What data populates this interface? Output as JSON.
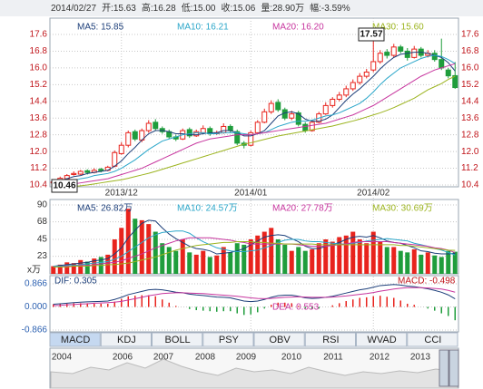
{
  "header": {
    "items": [
      "2014/02/27",
      "开:15.63",
      "高:16.28",
      "低:15.00",
      "收:15.06",
      "量:28.90万",
      "幅:-3.59%"
    ]
  },
  "chart_data": [
    {
      "type": "candlestick",
      "categories": [
        null,
        null,
        null,
        null,
        null,
        null,
        null,
        null,
        null,
        null,
        "2013/12",
        null,
        null,
        null,
        null,
        null,
        null,
        null,
        null,
        null,
        null,
        null,
        null,
        null,
        null,
        null,
        null,
        null,
        null,
        "2014/01",
        null,
        null,
        null,
        null,
        null,
        null,
        null,
        null,
        null,
        null,
        null,
        null,
        null,
        null,
        null,
        null,
        null,
        "2014/02",
        null,
        null,
        null,
        null,
        null,
        null,
        null,
        null,
        null,
        null,
        null,
        null
      ],
      "open": [
        10.5,
        10.56,
        10.7,
        10.9,
        10.92,
        11.08,
        11.0,
        11.15,
        11.1,
        11.3,
        11.9,
        12.3,
        12.95,
        12.55,
        13.0,
        13.4,
        13.1,
        12.95,
        12.7,
        12.6,
        13.05,
        12.75,
        12.9,
        13.1,
        12.85,
        12.9,
        13.2,
        12.95,
        12.4,
        12.3,
        12.9,
        13.4,
        13.9,
        14.35,
        14.0,
        13.6,
        13.85,
        13.3,
        13.0,
        13.4,
        13.8,
        14.2,
        14.5,
        14.7,
        15.0,
        15.3,
        15.6,
        15.9,
        16.3,
        16.75,
        16.6,
        17.0,
        16.8,
        16.5,
        16.9,
        16.6,
        16.7,
        16.4,
        15.9,
        15.63
      ],
      "high": [
        10.62,
        10.8,
        10.92,
        11.05,
        11.12,
        11.15,
        11.2,
        11.22,
        11.32,
        12.05,
        12.45,
        13.0,
        13.05,
        13.1,
        13.5,
        13.55,
        13.2,
        13.05,
        12.8,
        13.1,
        13.15,
        13.05,
        13.25,
        13.2,
        13.0,
        13.35,
        13.3,
        13.05,
        12.5,
        13.0,
        13.5,
        14.05,
        14.45,
        14.5,
        14.1,
        13.95,
        13.95,
        13.4,
        13.5,
        13.9,
        14.35,
        14.6,
        14.85,
        15.15,
        15.45,
        15.75,
        15.95,
        17.57,
        16.85,
        16.9,
        17.15,
        17.1,
        16.95,
        17.05,
        17.0,
        16.85,
        16.85,
        17.4,
        16.0,
        16.28
      ],
      "low": [
        10.46,
        10.5,
        10.65,
        10.85,
        10.88,
        10.9,
        10.95,
        11.0,
        11.05,
        11.25,
        11.85,
        12.2,
        12.5,
        12.45,
        12.9,
        13.0,
        12.85,
        12.6,
        12.5,
        12.55,
        12.65,
        12.7,
        12.85,
        12.75,
        12.8,
        12.85,
        12.9,
        12.3,
        12.15,
        12.25,
        12.85,
        13.35,
        13.8,
        13.9,
        13.5,
        13.5,
        13.2,
        12.9,
        12.95,
        13.35,
        13.75,
        14.1,
        14.4,
        14.6,
        14.9,
        15.2,
        15.5,
        15.8,
        16.2,
        16.45,
        16.5,
        16.7,
        16.35,
        16.45,
        16.5,
        16.5,
        16.3,
        15.9,
        15.5,
        15.0
      ],
      "close": [
        10.55,
        10.72,
        10.85,
        10.95,
        11.05,
        11.0,
        11.1,
        11.08,
        11.25,
        11.95,
        12.3,
        12.9,
        12.6,
        13.0,
        13.35,
        13.1,
        12.95,
        12.7,
        12.6,
        13.0,
        12.75,
        12.95,
        13.1,
        12.85,
        12.9,
        13.2,
        13.0,
        12.4,
        12.3,
        12.9,
        13.4,
        13.9,
        14.3,
        14.0,
        13.6,
        13.8,
        13.3,
        13.0,
        13.4,
        13.8,
        14.2,
        14.5,
        14.7,
        15.0,
        15.3,
        15.6,
        15.8,
        16.3,
        16.7,
        16.6,
        17.0,
        16.8,
        16.5,
        16.9,
        16.6,
        16.7,
        16.4,
        16.0,
        15.62,
        15.06
      ],
      "up_color": "#e8231d",
      "down_color": "#1f9d3c",
      "series": [
        {
          "name": "MA5: 15.85",
          "color": "#1d3f7a",
          "values": [
            10.5,
            10.6,
            10.7,
            10.8,
            10.85,
            10.95,
            11.0,
            11.05,
            11.1,
            11.3,
            11.55,
            11.9,
            12.2,
            12.55,
            12.85,
            13.0,
            13.0,
            12.95,
            12.85,
            12.85,
            12.8,
            12.8,
            12.85,
            12.9,
            12.9,
            13.0,
            13.0,
            12.9,
            12.75,
            12.75,
            12.85,
            13.0,
            13.35,
            13.7,
            13.85,
            13.9,
            13.8,
            13.55,
            13.45,
            13.45,
            13.55,
            13.75,
            14.1,
            14.45,
            14.75,
            15.0,
            15.3,
            15.6,
            15.95,
            16.25,
            16.5,
            16.65,
            16.7,
            16.75,
            16.75,
            16.7,
            16.6,
            16.5,
            16.25,
            15.85
          ]
        },
        {
          "name": "MA10: 16.21",
          "color": "#2aa6c9",
          "values": [
            10.4,
            10.5,
            10.55,
            10.6,
            10.7,
            10.75,
            10.85,
            10.9,
            10.95,
            11.05,
            11.2,
            11.4,
            11.6,
            11.85,
            12.1,
            12.3,
            12.5,
            12.6,
            12.7,
            12.8,
            12.85,
            12.9,
            12.9,
            12.85,
            12.85,
            12.9,
            12.9,
            12.9,
            12.85,
            12.8,
            12.85,
            12.9,
            13.05,
            13.2,
            13.3,
            13.4,
            13.45,
            13.45,
            13.5,
            13.6,
            13.7,
            13.75,
            13.85,
            14.0,
            14.15,
            14.3,
            14.55,
            14.85,
            15.2,
            15.5,
            15.75,
            16.0,
            16.15,
            16.3,
            16.45,
            16.55,
            16.6,
            16.55,
            16.4,
            16.21
          ]
        },
        {
          "name": "MA20: 16.20",
          "color": "#c7359e",
          "values": [
            10.3,
            10.35,
            10.4,
            10.45,
            10.5,
            10.55,
            10.6,
            10.65,
            10.7,
            10.8,
            10.9,
            11.0,
            11.1,
            11.2,
            11.35,
            11.5,
            11.65,
            11.8,
            11.95,
            12.1,
            12.25,
            12.4,
            12.5,
            12.6,
            12.65,
            12.7,
            12.75,
            12.8,
            12.8,
            12.8,
            12.85,
            12.9,
            12.95,
            13.0,
            13.05,
            13.1,
            13.15,
            13.2,
            13.25,
            13.3,
            13.35,
            13.45,
            13.55,
            13.65,
            13.75,
            13.9,
            14.05,
            14.2,
            14.4,
            14.6,
            14.8,
            15.0,
            15.2,
            15.4,
            15.6,
            15.75,
            15.9,
            16.0,
            16.1,
            16.2
          ]
        },
        {
          "name": "MA30: 15.60",
          "color": "#9cb41f",
          "values": [
            10.2,
            10.25,
            10.3,
            10.32,
            10.36,
            10.4,
            10.45,
            10.5,
            10.55,
            10.6,
            10.65,
            10.72,
            10.8,
            10.88,
            10.96,
            11.05,
            11.15,
            11.25,
            11.35,
            11.45,
            11.55,
            11.65,
            11.75,
            11.85,
            11.95,
            12.05,
            12.15,
            12.25,
            12.35,
            12.42,
            12.5,
            12.58,
            12.66,
            12.74,
            12.8,
            12.86,
            12.92,
            12.98,
            13.04,
            13.1,
            13.16,
            13.22,
            13.3,
            13.38,
            13.46,
            13.55,
            13.65,
            13.75,
            13.85,
            13.97,
            14.1,
            14.25,
            14.4,
            14.55,
            14.75,
            14.95,
            15.1,
            15.25,
            15.45,
            15.6
          ]
        }
      ],
      "ylim": [
        10.4,
        17.6
      ],
      "yticks": [
        10.4,
        11.2,
        {
          "value": 12,
          "label": "12.0"
        },
        12.8,
        13.6,
        14.4,
        15.2,
        {
          "value": 16,
          "label": "16.0"
        },
        16.8,
        17.6
      ],
      "annotations": [
        "17.57",
        "10.46"
      ],
      "grid": true
    },
    {
      "type": "bar",
      "values": [
        10,
        12,
        15,
        14,
        18,
        16,
        20,
        22,
        25,
        45,
        60,
        85,
        72,
        70,
        65,
        55,
        40,
        35,
        30,
        45,
        28,
        25,
        30,
        22,
        24,
        35,
        28,
        40,
        38,
        45,
        50,
        55,
        60,
        45,
        38,
        30,
        35,
        30,
        32,
        40,
        45,
        42,
        48,
        50,
        55,
        45,
        40,
        55,
        42,
        35,
        35,
        30,
        28,
        32,
        25,
        28,
        24,
        22,
        30,
        28.9
      ],
      "series": [
        {
          "name": "MA5: 26.82万",
          "color": "#1d3f7a",
          "values": [
            10,
            11,
            12,
            13,
            14,
            15,
            17,
            18,
            20,
            26,
            34,
            47,
            57,
            66,
            70,
            69,
            60,
            52,
            46,
            41,
            36,
            33,
            32,
            30,
            26,
            27,
            28,
            30,
            33,
            38,
            43,
            48,
            50,
            51,
            50,
            46,
            42,
            36,
            33,
            33,
            36,
            38,
            41,
            45,
            48,
            49,
            48,
            50,
            47,
            43,
            41,
            40,
            37,
            34,
            30,
            29,
            27,
            26,
            26,
            26.82
          ]
        },
        {
          "name": "MA10: 24.57万",
          "color": "#2aa6c9",
          "values": [
            10,
            10,
            11,
            11,
            12,
            13,
            14,
            15,
            16,
            19,
            23,
            29,
            35,
            41,
            47,
            51,
            54,
            55,
            56,
            56,
            53,
            47,
            42,
            38,
            34,
            32,
            30,
            29,
            29,
            30,
            31,
            34,
            37,
            41,
            44,
            45,
            45,
            43,
            42,
            42,
            41,
            40,
            39,
            39,
            40,
            41,
            43,
            44,
            45,
            46,
            45,
            44,
            43,
            40,
            38,
            36,
            33,
            31,
            28,
            24.57
          ]
        },
        {
          "name": "MA20: 27.78万",
          "color": "#c7359e",
          "values": [
            9,
            9,
            10,
            10,
            11,
            11,
            12,
            13,
            14,
            15,
            17,
            20,
            23,
            26,
            30,
            34,
            37,
            40,
            43,
            45,
            47,
            47,
            47,
            47,
            46,
            45,
            44,
            42,
            41,
            39,
            39,
            39,
            39,
            39,
            39,
            39,
            38,
            37,
            36,
            36,
            36,
            37,
            38,
            39,
            41,
            42,
            42,
            42,
            42,
            42,
            41,
            40,
            39,
            38,
            37,
            36,
            34,
            33,
            31,
            27.78
          ]
        },
        {
          "name": "MA30: 30.69万",
          "color": "#9cb41f",
          "values": [
            9,
            9,
            9,
            10,
            10,
            10,
            11,
            11,
            12,
            12,
            13,
            14,
            16,
            18,
            20,
            22,
            25,
            28,
            31,
            33,
            35,
            37,
            38,
            39,
            40,
            41,
            41,
            42,
            42,
            42,
            41,
            41,
            40,
            40,
            39,
            39,
            39,
            39,
            39,
            38,
            38,
            38,
            38,
            38,
            38,
            38,
            38,
            38,
            38,
            38,
            38,
            37,
            37,
            36,
            35,
            34,
            33,
            32,
            31,
            30.69
          ]
        }
      ],
      "ylim": [
        0,
        90
      ],
      "yticks": [
        23,
        45,
        68,
        90
      ],
      "unit_label": "x万",
      "grid": true
    },
    {
      "type": "macd",
      "name": "MACD: -0.498",
      "values": [
        0.1,
        0.12,
        0.12,
        0.14,
        0.14,
        0.14,
        0.12,
        0.12,
        0.12,
        0.2,
        0.3,
        0.4,
        0.42,
        0.44,
        0.44,
        0.4,
        0.28,
        0.16,
        0.04,
        0,
        -0.08,
        -0.12,
        -0.14,
        -0.16,
        -0.18,
        -0.16,
        -0.16,
        -0.24,
        -0.3,
        -0.28,
        -0.2,
        -0.06,
        0.08,
        0.16,
        0.16,
        0.14,
        0.04,
        -0.06,
        -0.08,
        -0.06,
        0,
        0.06,
        0.14,
        0.22,
        0.28,
        0.34,
        0.36,
        0.4,
        0.42,
        0.38,
        0.34,
        0.24,
        0.12,
        0.08,
        0,
        -0.06,
        -0.14,
        -0.24,
        -0.34,
        -0.498
      ],
      "series": [
        {
          "name": "DIF: 0.305",
          "color": "#1d3f7a",
          "values": [
            0.1,
            0.12,
            0.14,
            0.16,
            0.18,
            0.19,
            0.2,
            0.21,
            0.22,
            0.28,
            0.36,
            0.46,
            0.52,
            0.58,
            0.64,
            0.66,
            0.64,
            0.6,
            0.55,
            0.53,
            0.48,
            0.45,
            0.43,
            0.4,
            0.37,
            0.36,
            0.34,
            0.28,
            0.22,
            0.2,
            0.22,
            0.28,
            0.36,
            0.42,
            0.44,
            0.44,
            0.4,
            0.34,
            0.32,
            0.33,
            0.36,
            0.4,
            0.46,
            0.52,
            0.58,
            0.64,
            0.68,
            0.74,
            0.8,
            0.82,
            0.84,
            0.82,
            0.78,
            0.76,
            0.72,
            0.68,
            0.62,
            0.55,
            0.45,
            0.305
          ]
        },
        {
          "name": "DEA: 0.553",
          "color": "#c7359e",
          "values": [
            0.05,
            0.06,
            0.08,
            0.09,
            0.11,
            0.12,
            0.14,
            0.15,
            0.16,
            0.18,
            0.21,
            0.26,
            0.31,
            0.36,
            0.42,
            0.46,
            0.5,
            0.52,
            0.53,
            0.53,
            0.52,
            0.51,
            0.5,
            0.48,
            0.46,
            0.44,
            0.42,
            0.4,
            0.37,
            0.34,
            0.32,
            0.31,
            0.32,
            0.34,
            0.36,
            0.37,
            0.38,
            0.37,
            0.36,
            0.36,
            0.36,
            0.37,
            0.39,
            0.41,
            0.44,
            0.47,
            0.5,
            0.54,
            0.59,
            0.63,
            0.67,
            0.7,
            0.72,
            0.72,
            0.72,
            0.71,
            0.69,
            0.67,
            0.62,
            0.553
          ]
        }
      ],
      "ylim": [
        -0.866,
        0.866
      ],
      "yticks": [
        0.866,
        {
          "value": 0,
          "label": "0.000"
        },
        -0.866
      ],
      "grid": true
    }
  ],
  "tabs": [
    "MACD",
    "KDJ",
    "BOLL",
    "PSY",
    "OBV",
    "RSI",
    "WVAD",
    "CCI"
  ],
  "navigator": {
    "years": [
      "2004",
      "2006",
      "2007",
      "2008",
      "2009",
      "2010",
      "2011",
      "2012",
      "2013"
    ]
  }
}
